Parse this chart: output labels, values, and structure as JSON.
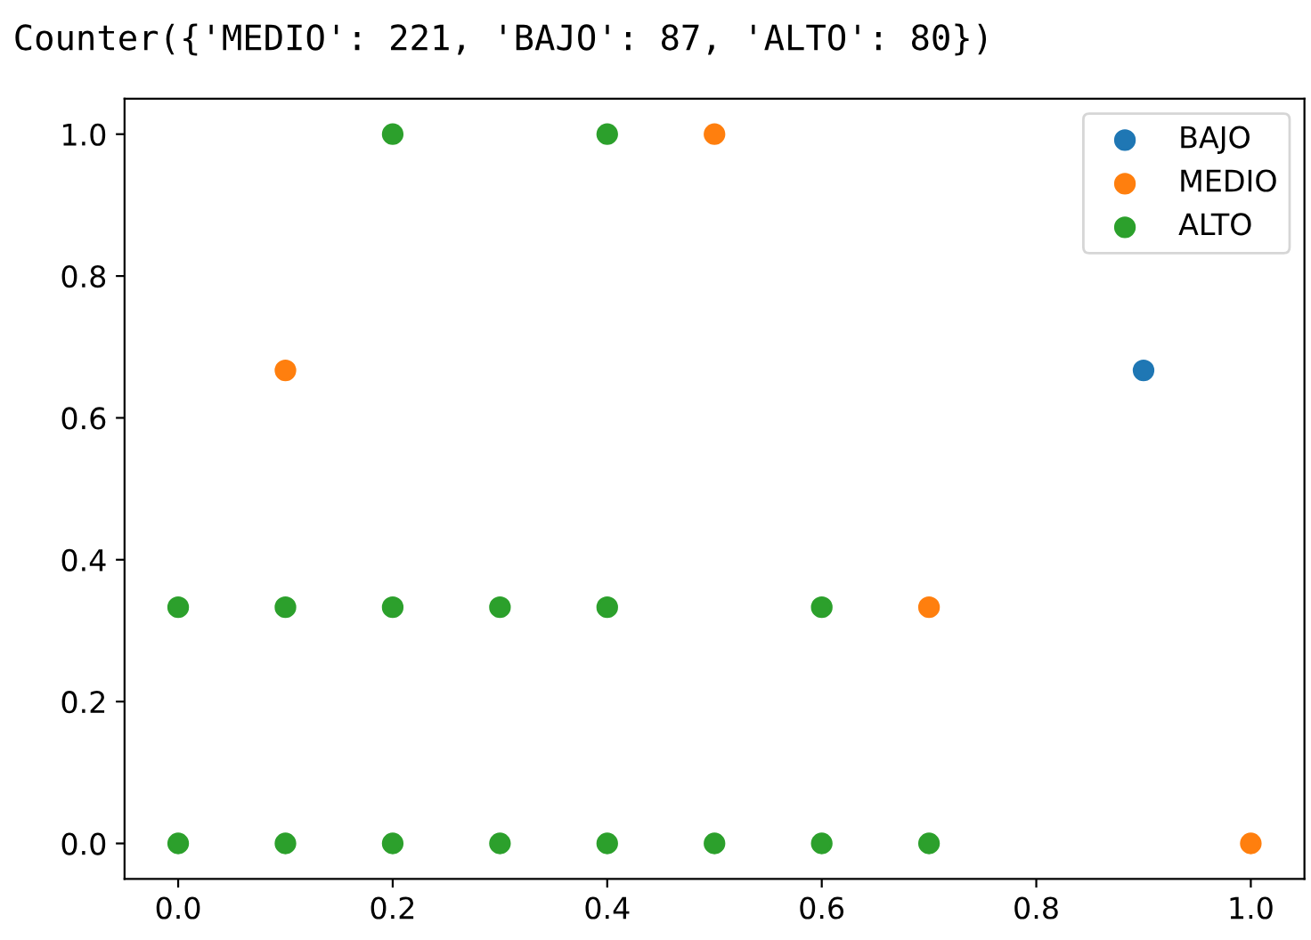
{
  "chart_data": {
    "type": "scatter",
    "title": "Counter({'MEDIO': 221, 'BAJO': 87, 'ALTO': 80})",
    "xlim": [
      -0.05,
      1.05
    ],
    "ylim": [
      -0.05,
      1.05
    ],
    "xticks": [
      {
        "value": 0,
        "label": "0.0"
      },
      0.2,
      0.4,
      0.6,
      0.8,
      {
        "value": 1,
        "label": "1.0"
      }
    ],
    "yticks": [
      {
        "value": 0,
        "label": "0.0"
      },
      0.2,
      0.4,
      0.6,
      0.8,
      {
        "value": 1,
        "label": "1.0"
      }
    ],
    "grid": false,
    "legend": "top right",
    "marker": "circle",
    "series": [
      {
        "name": "BAJO",
        "color": "#1f77b4",
        "x": [
          0.9
        ],
        "values": [
          0.667
        ]
      },
      {
        "name": "MEDIO",
        "color": "#ff7f0e",
        "x": [
          0.5,
          0.1,
          0.7,
          1.0
        ],
        "values": [
          1.0,
          0.667,
          0.333,
          0.0
        ]
      },
      {
        "name": "ALTO",
        "color": "#2ca02c",
        "x": [
          0.2,
          0.4,
          0.0,
          0.1,
          0.2,
          0.3,
          0.4,
          0.6,
          0.0,
          0.1,
          0.2,
          0.3,
          0.4,
          0.5,
          0.6,
          0.7
        ],
        "values": [
          1.0,
          1.0,
          0.333,
          0.333,
          0.333,
          0.333,
          0.333,
          0.333,
          0.0,
          0.0,
          0.0,
          0.0,
          0.0,
          0.0,
          0.0,
          0.0
        ]
      }
    ]
  }
}
